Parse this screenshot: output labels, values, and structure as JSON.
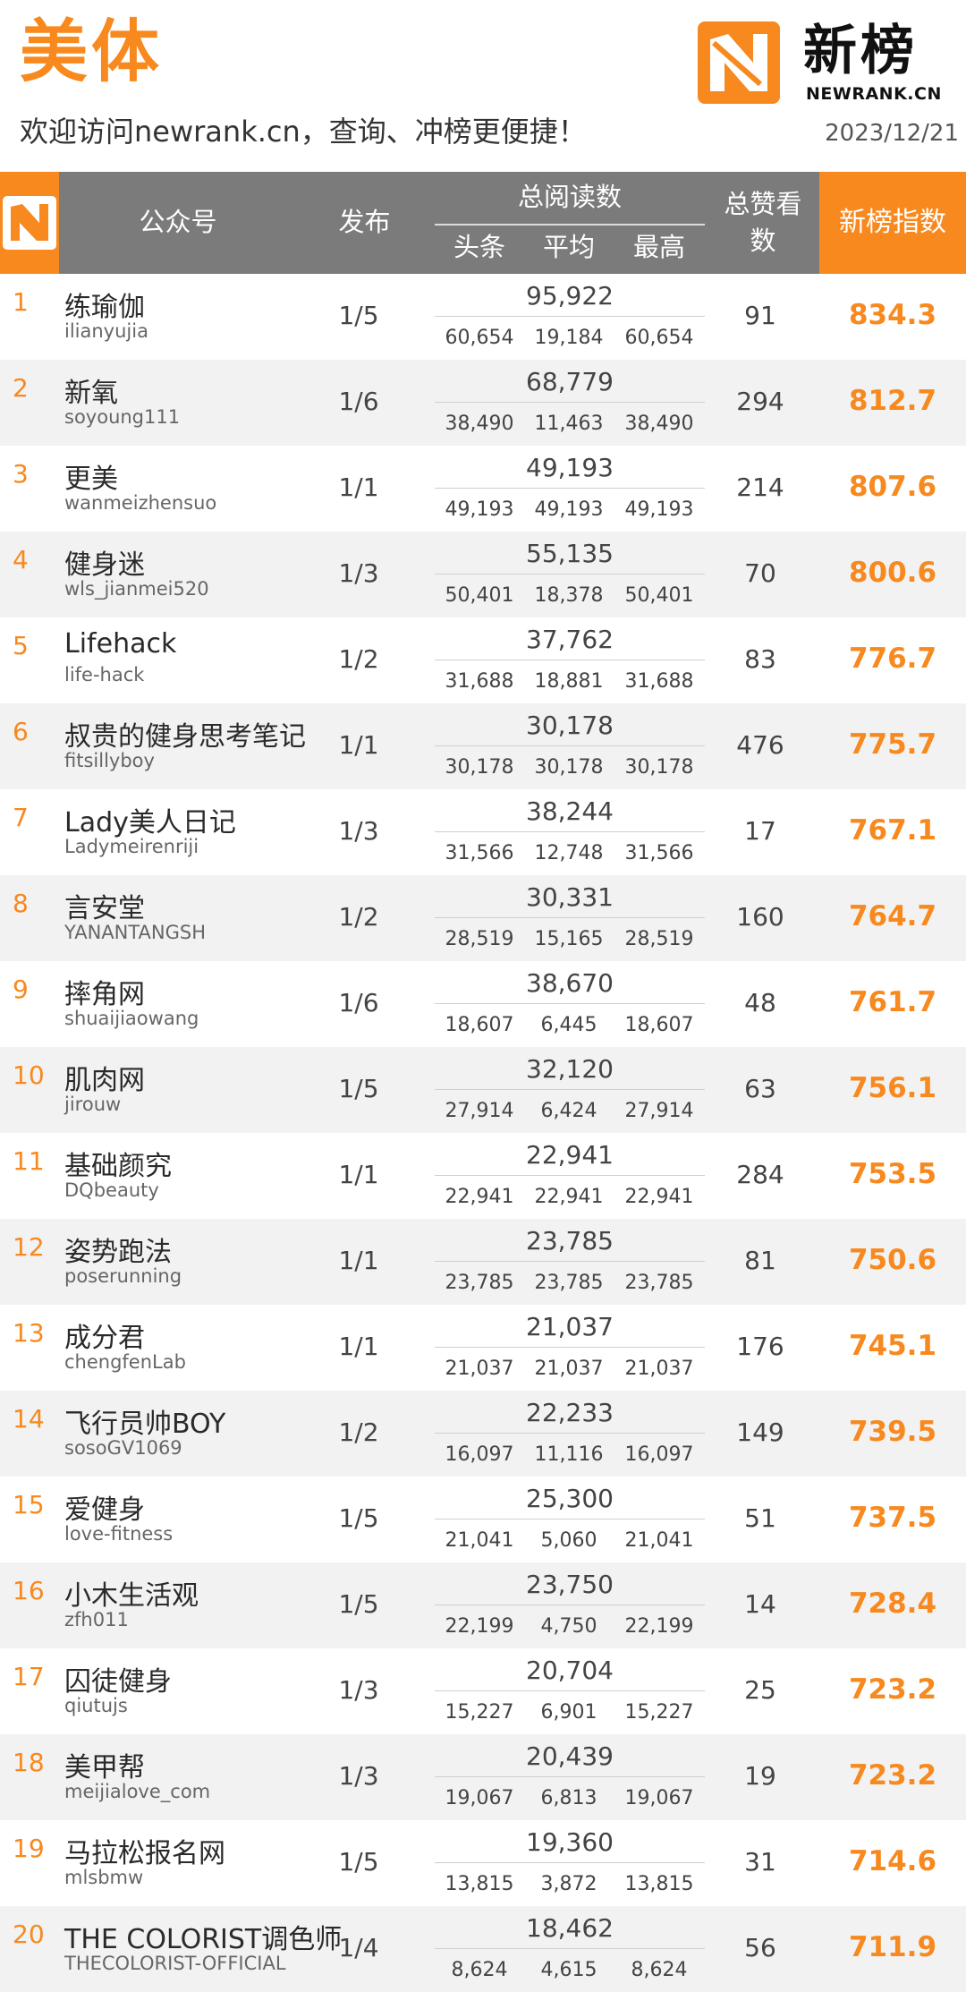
{
  "header": {
    "category": "美体",
    "subtitle": "欢迎访问newrank.cn，查询、冲榜更便捷！",
    "date": "2023/12/21",
    "brand_name": "新榜",
    "brand_domain": "NEWRANK.CN",
    "brand_color": "#f7891e",
    "logo_icon": "newrank-logo-icon"
  },
  "columns": {
    "name": "公众号",
    "publish": "发布",
    "total_reads": "总阅读数",
    "headline": "头条",
    "average": "平均",
    "max": "最高",
    "likes": "总赞看数",
    "index": "新榜指数"
  },
  "rows": [
    {
      "rank": "1",
      "name": "练瑜伽",
      "account": "ilianyujia",
      "publish": "1/5",
      "total": "95,922",
      "headline": "60,654",
      "average": "19,184",
      "max": "60,654",
      "likes": "91",
      "index": "834.3"
    },
    {
      "rank": "2",
      "name": "新氧",
      "account": "soyoung111",
      "publish": "1/6",
      "total": "68,779",
      "headline": "38,490",
      "average": "11,463",
      "max": "38,490",
      "likes": "294",
      "index": "812.7"
    },
    {
      "rank": "3",
      "name": "更美",
      "account": "wanmeizhensuo",
      "publish": "1/1",
      "total": "49,193",
      "headline": "49,193",
      "average": "49,193",
      "max": "49,193",
      "likes": "214",
      "index": "807.6"
    },
    {
      "rank": "4",
      "name": "健身迷",
      "account": "wls_jianmei520",
      "publish": "1/3",
      "total": "55,135",
      "headline": "50,401",
      "average": "18,378",
      "max": "50,401",
      "likes": "70",
      "index": "800.6"
    },
    {
      "rank": "5",
      "name": "Lifehack",
      "account": "life-hack",
      "publish": "1/2",
      "total": "37,762",
      "headline": "31,688",
      "average": "18,881",
      "max": "31,688",
      "likes": "83",
      "index": "776.7"
    },
    {
      "rank": "6",
      "name": "叔贵的健身思考笔记",
      "account": "fitsillyboy",
      "publish": "1/1",
      "total": "30,178",
      "headline": "30,178",
      "average": "30,178",
      "max": "30,178",
      "likes": "476",
      "index": "775.7"
    },
    {
      "rank": "7",
      "name": "Lady美人日记",
      "account": "Ladymeirenriji",
      "publish": "1/3",
      "total": "38,244",
      "headline": "31,566",
      "average": "12,748",
      "max": "31,566",
      "likes": "17",
      "index": "767.1"
    },
    {
      "rank": "8",
      "name": "言安堂",
      "account": "YANANTANGSH",
      "publish": "1/2",
      "total": "30,331",
      "headline": "28,519",
      "average": "15,165",
      "max": "28,519",
      "likes": "160",
      "index": "764.7"
    },
    {
      "rank": "9",
      "name": "摔角网",
      "account": "shuaijiaowang",
      "publish": "1/6",
      "total": "38,670",
      "headline": "18,607",
      "average": "6,445",
      "max": "18,607",
      "likes": "48",
      "index": "761.7"
    },
    {
      "rank": "10",
      "name": "肌肉网",
      "account": "jirouw",
      "publish": "1/5",
      "total": "32,120",
      "headline": "27,914",
      "average": "6,424",
      "max": "27,914",
      "likes": "63",
      "index": "756.1"
    },
    {
      "rank": "11",
      "name": "基础颜究",
      "account": "DQbeauty",
      "publish": "1/1",
      "total": "22,941",
      "headline": "22,941",
      "average": "22,941",
      "max": "22,941",
      "likes": "284",
      "index": "753.5"
    },
    {
      "rank": "12",
      "name": "姿势跑法",
      "account": "poserunning",
      "publish": "1/1",
      "total": "23,785",
      "headline": "23,785",
      "average": "23,785",
      "max": "23,785",
      "likes": "81",
      "index": "750.6"
    },
    {
      "rank": "13",
      "name": "成分君",
      "account": "chengfenLab",
      "publish": "1/1",
      "total": "21,037",
      "headline": "21,037",
      "average": "21,037",
      "max": "21,037",
      "likes": "176",
      "index": "745.1"
    },
    {
      "rank": "14",
      "name": "飞行员帅BOY",
      "account": "sosoGV1069",
      "publish": "1/2",
      "total": "22,233",
      "headline": "16,097",
      "average": "11,116",
      "max": "16,097",
      "likes": "149",
      "index": "739.5"
    },
    {
      "rank": "15",
      "name": "爱健身",
      "account": "love-fitness",
      "publish": "1/5",
      "total": "25,300",
      "headline": "21,041",
      "average": "5,060",
      "max": "21,041",
      "likes": "51",
      "index": "737.5"
    },
    {
      "rank": "16",
      "name": "小木生活观",
      "account": "zfh011",
      "publish": "1/5",
      "total": "23,750",
      "headline": "22,199",
      "average": "4,750",
      "max": "22,199",
      "likes": "14",
      "index": "728.4"
    },
    {
      "rank": "17",
      "name": "囚徒健身",
      "account": "qiutujs",
      "publish": "1/3",
      "total": "20,704",
      "headline": "15,227",
      "average": "6,901",
      "max": "15,227",
      "likes": "25",
      "index": "723.2"
    },
    {
      "rank": "18",
      "name": "美甲帮",
      "account": "meijialove_com",
      "publish": "1/3",
      "total": "20,439",
      "headline": "19,067",
      "average": "6,813",
      "max": "19,067",
      "likes": "19",
      "index": "723.2"
    },
    {
      "rank": "19",
      "name": "马拉松报名网",
      "account": "mlsbmw",
      "publish": "1/5",
      "total": "19,360",
      "headline": "13,815",
      "average": "3,872",
      "max": "13,815",
      "likes": "31",
      "index": "714.6"
    },
    {
      "rank": "20",
      "name": "THE COLORIST调色师",
      "account": "THECOLORIST-OFFICIAL",
      "publish": "1/4",
      "total": "18,462",
      "headline": "8,624",
      "average": "4,615",
      "max": "8,624",
      "likes": "56",
      "index": "711.9"
    }
  ]
}
